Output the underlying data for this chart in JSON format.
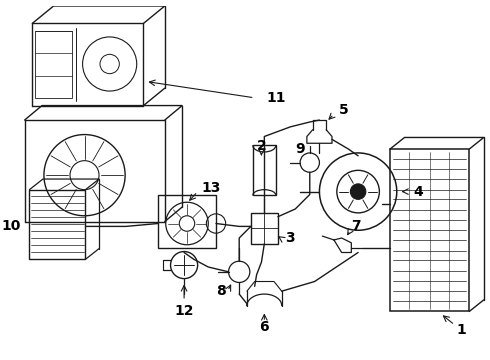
{
  "bg_color": "#ffffff",
  "line_color": "#1a1a1a",
  "label_color": "#000000",
  "figsize": [
    4.9,
    3.6
  ],
  "dpi": 100,
  "lw": 0.9
}
